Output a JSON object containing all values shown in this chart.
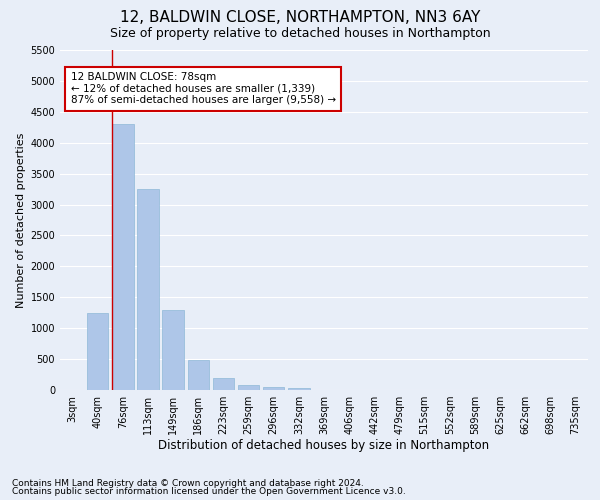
{
  "title1": "12, BALDWIN CLOSE, NORTHAMPTON, NN3 6AY",
  "title2": "Size of property relative to detached houses in Northampton",
  "xlabel": "Distribution of detached houses by size in Northampton",
  "ylabel": "Number of detached properties",
  "categories": [
    "3sqm",
    "40sqm",
    "76sqm",
    "113sqm",
    "149sqm",
    "186sqm",
    "223sqm",
    "259sqm",
    "296sqm",
    "332sqm",
    "369sqm",
    "406sqm",
    "442sqm",
    "479sqm",
    "515sqm",
    "552sqm",
    "589sqm",
    "625sqm",
    "662sqm",
    "698sqm",
    "735sqm"
  ],
  "values": [
    0,
    1250,
    4300,
    3250,
    1300,
    480,
    200,
    80,
    55,
    30,
    0,
    0,
    0,
    0,
    0,
    0,
    0,
    0,
    0,
    0,
    0
  ],
  "bar_color": "#aec6e8",
  "bar_edge_color": "#8fb8d8",
  "vline_color": "#cc0000",
  "annotation_text": "12 BALDWIN CLOSE: 78sqm\n← 12% of detached houses are smaller (1,339)\n87% of semi-detached houses are larger (9,558) →",
  "annotation_box_color": "#ffffff",
  "annotation_box_edge": "#cc0000",
  "ylim": [
    0,
    5500
  ],
  "yticks": [
    0,
    500,
    1000,
    1500,
    2000,
    2500,
    3000,
    3500,
    4000,
    4500,
    5000,
    5500
  ],
  "footnote1": "Contains HM Land Registry data © Crown copyright and database right 2024.",
  "footnote2": "Contains public sector information licensed under the Open Government Licence v3.0.",
  "bg_color": "#e8eef8",
  "plot_bg_color": "#e8eef8",
  "grid_color": "#ffffff",
  "title1_fontsize": 11,
  "title2_fontsize": 9,
  "xlabel_fontsize": 8.5,
  "ylabel_fontsize": 8,
  "tick_fontsize": 7,
  "footnote_fontsize": 6.5,
  "annotation_fontsize": 7.5
}
